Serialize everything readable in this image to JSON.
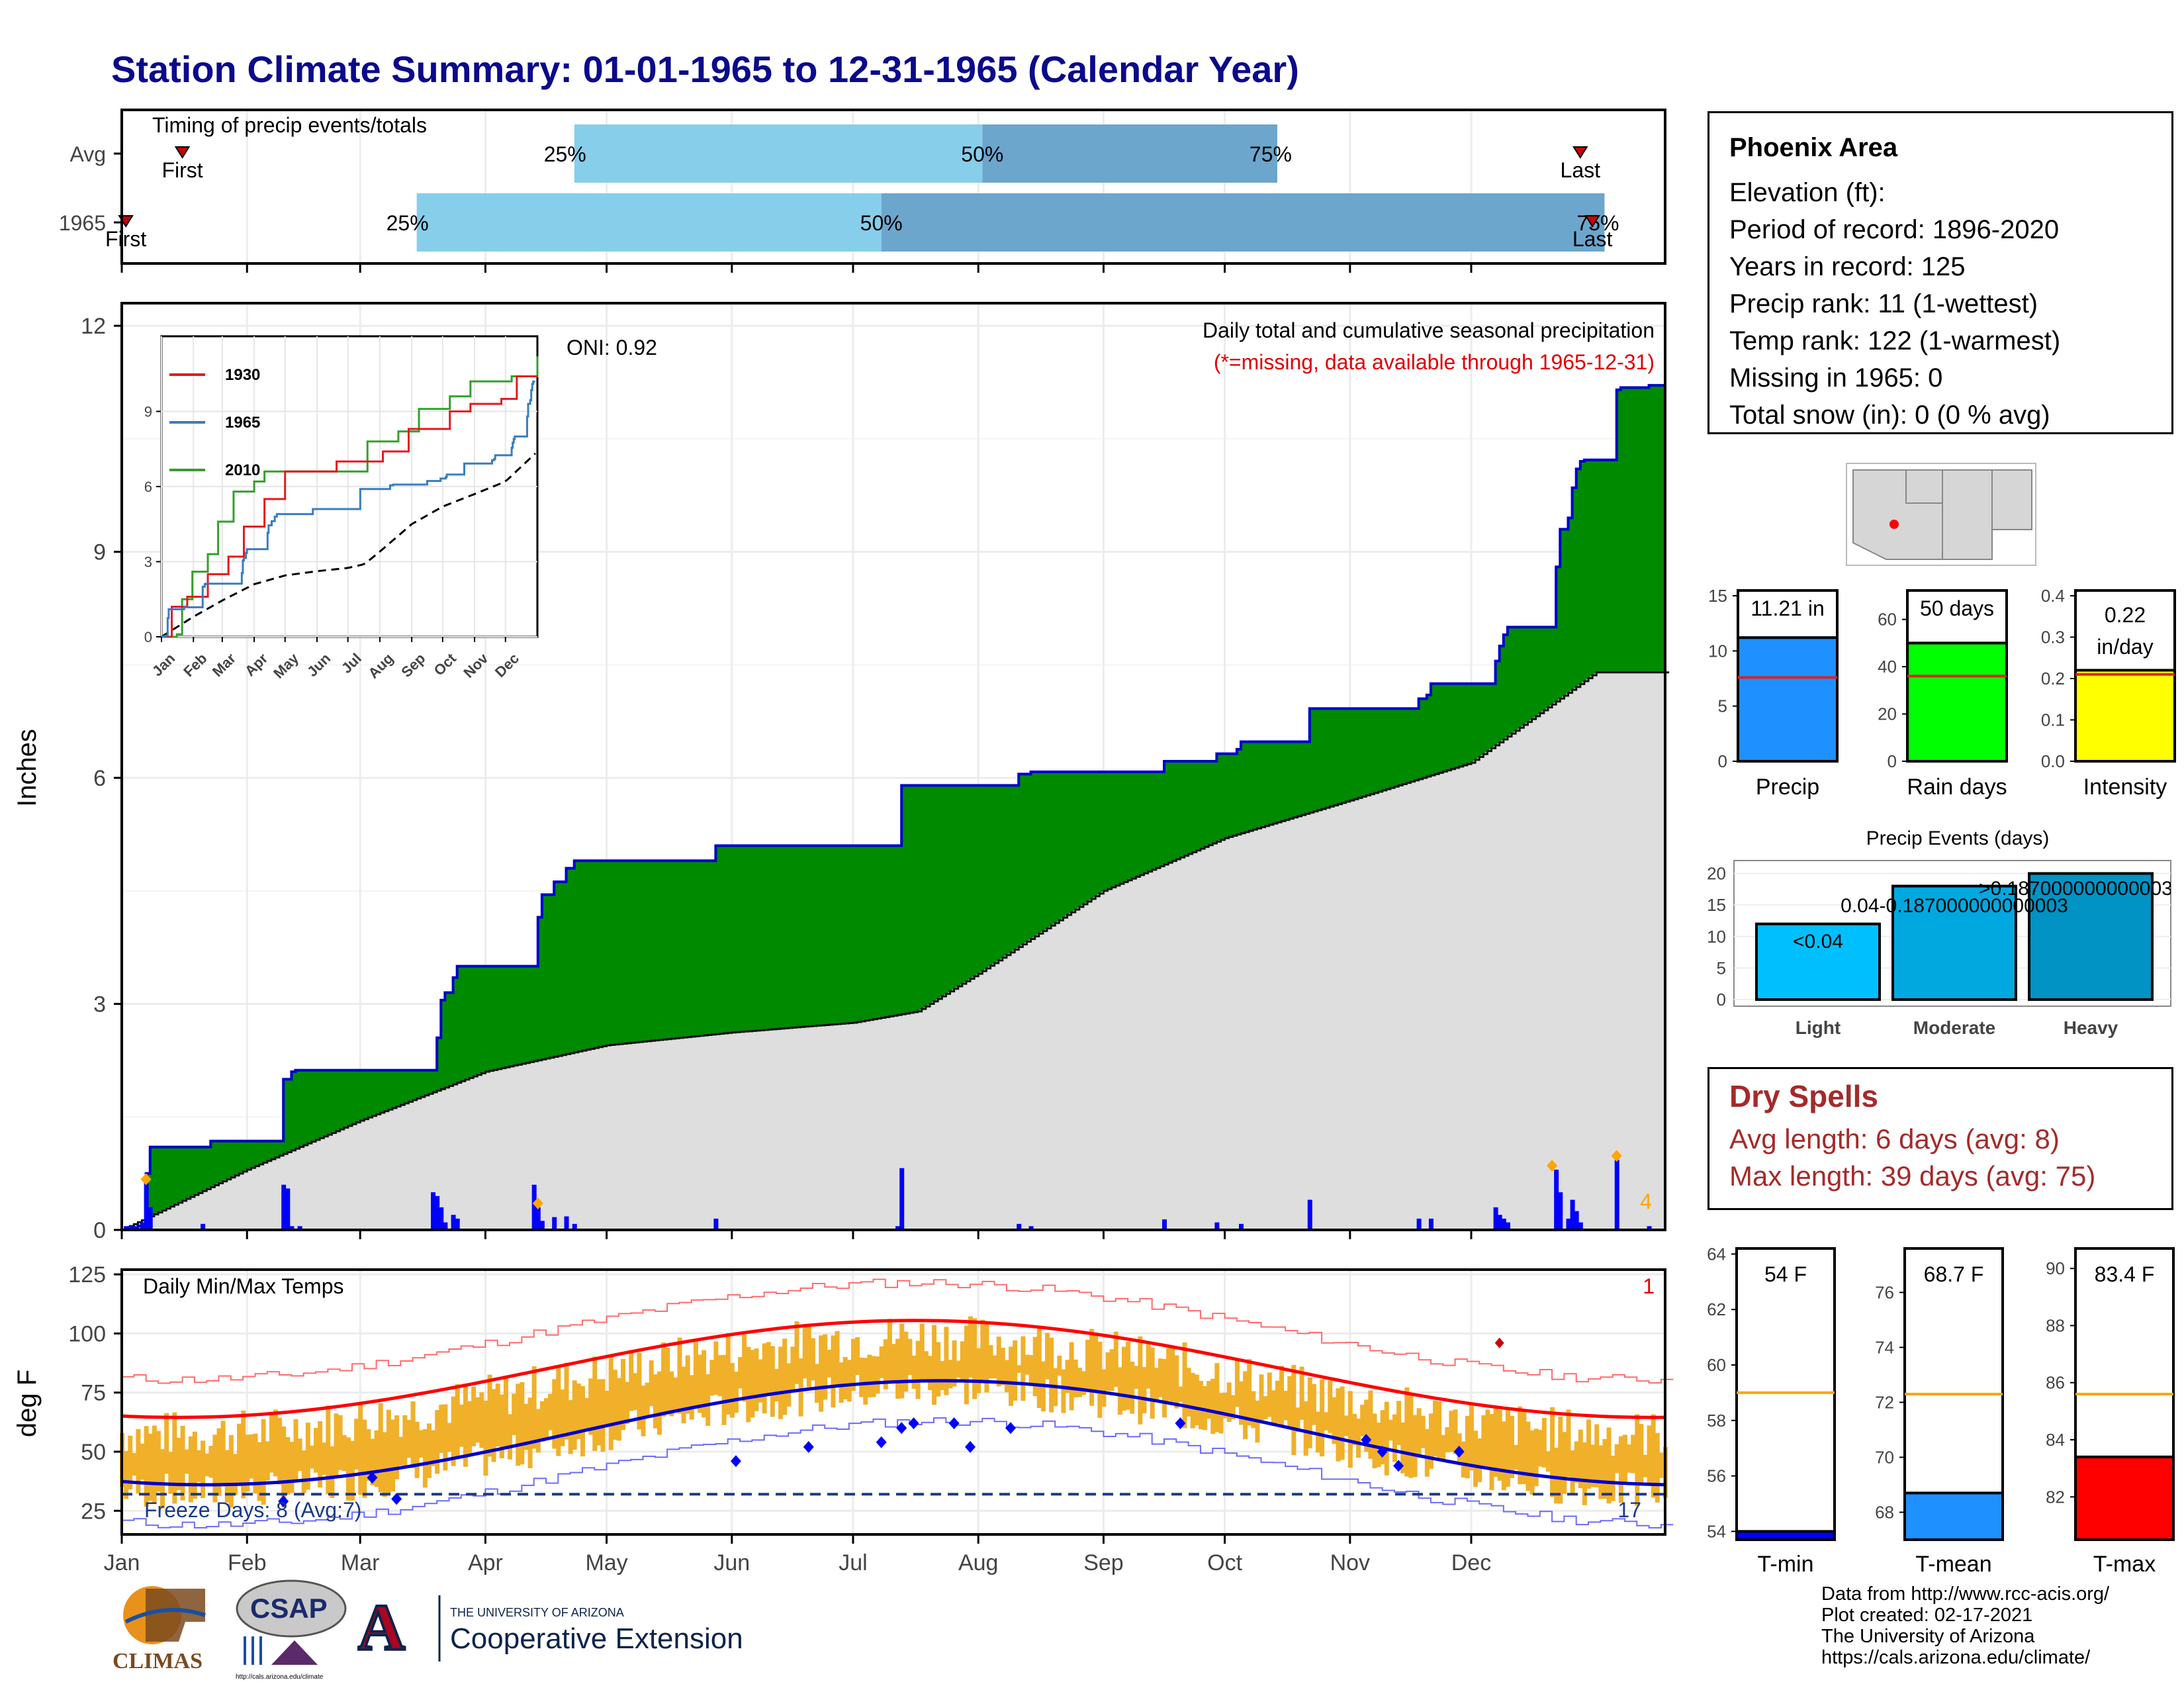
{
  "title": "Station Climate Summary: 01-01-1965 to 12-31-1965 (Calendar Year)",
  "months": [
    "Jan",
    "Feb",
    "Mar",
    "Apr",
    "May",
    "Jun",
    "Jul",
    "Aug",
    "Sep",
    "Oct",
    "Nov",
    "Dec"
  ],
  "timing": {
    "title": "Timing of precip events/totals",
    "rows": [
      {
        "label": "Avg",
        "first_label": "First",
        "last_label": "Last",
        "first_day": 15,
        "last_day": 361,
        "p25_day": 112,
        "p50_day": 213,
        "p75_day": 286,
        "p25_label": "25%",
        "p50_label": "50%",
        "p75_label": "75%"
      },
      {
        "label": "1965",
        "first_label": "First",
        "last_label": "Last",
        "first_day": 1,
        "last_day": 364,
        "p25_day": 73,
        "p50_day": 188,
        "p75_day": 367,
        "p25_label": "25%",
        "p50_label": "50%",
        "p75_label": "75%"
      }
    ]
  },
  "precip_panel": {
    "ylabel": "Inches",
    "yticks": [
      0,
      3,
      6,
      9,
      12
    ],
    "ylim": [
      0,
      12.3
    ],
    "subtitle": "Daily total and cumulative seasonal precipitation",
    "note": "(*=missing, data available through 1965-12-31)",
    "oni": "ONI: 0.92",
    "count_label": "4",
    "cum_1965": [
      [
        0,
        0
      ],
      [
        1,
        0.02
      ],
      [
        4,
        0.05
      ],
      [
        6,
        0.75
      ],
      [
        7,
        1.1
      ],
      [
        21,
        1.1
      ],
      [
        22,
        1.18
      ],
      [
        39,
        1.18
      ],
      [
        40,
        2.0
      ],
      [
        42,
        2.1
      ],
      [
        43,
        2.12
      ],
      [
        77,
        2.12
      ],
      [
        78,
        2.55
      ],
      [
        79,
        3.05
      ],
      [
        80,
        3.15
      ],
      [
        82,
        3.35
      ],
      [
        83,
        3.5
      ],
      [
        102,
        3.5
      ],
      [
        103,
        4.15
      ],
      [
        104,
        4.45
      ],
      [
        107,
        4.62
      ],
      [
        110,
        4.8
      ],
      [
        112,
        4.9
      ],
      [
        146,
        4.9
      ],
      [
        147,
        5.1
      ],
      [
        192,
        5.1
      ],
      [
        193,
        5.9
      ],
      [
        221,
        5.9
      ],
      [
        222,
        6.05
      ],
      [
        225,
        6.08
      ],
      [
        257,
        6.08
      ],
      [
        258,
        6.22
      ],
      [
        270,
        6.22
      ],
      [
        271,
        6.32
      ],
      [
        276,
        6.38
      ],
      [
        277,
        6.48
      ],
      [
        293,
        6.48
      ],
      [
        294,
        6.92
      ],
      [
        320,
        6.92
      ],
      [
        321,
        7.05
      ],
      [
        323,
        7.1
      ],
      [
        324,
        7.25
      ],
      [
        339,
        7.25
      ],
      [
        340,
        7.55
      ],
      [
        341,
        7.75
      ],
      [
        342,
        7.9
      ],
      [
        343,
        8.0
      ],
      [
        354,
        8.0
      ],
      [
        355,
        8.8
      ],
      [
        356,
        9.3
      ],
      [
        358,
        9.45
      ],
      [
        359,
        9.85
      ],
      [
        360,
        10.1
      ],
      [
        361,
        10.2
      ],
      [
        362,
        10.22
      ],
      [
        369,
        10.22
      ],
      [
        370,
        11.15
      ],
      [
        371,
        11.18
      ],
      [
        377,
        11.18
      ],
      [
        378,
        11.21
      ],
      [
        382,
        11.21
      ]
    ],
    "normal_cum": [
      [
        0,
        0
      ],
      [
        31,
        0.8
      ],
      [
        59,
        1.45
      ],
      [
        90,
        2.1
      ],
      [
        120,
        2.45
      ],
      [
        151,
        2.62
      ],
      [
        181,
        2.75
      ],
      [
        197,
        2.9
      ],
      [
        212,
        3.4
      ],
      [
        243,
        4.5
      ],
      [
        273,
        5.2
      ],
      [
        304,
        5.7
      ],
      [
        334,
        6.2
      ],
      [
        365,
        7.4
      ]
    ],
    "daily_bars": [
      [
        1,
        0.05
      ],
      [
        2,
        0.05
      ],
      [
        3,
        0.05
      ],
      [
        5,
        0.1
      ],
      [
        6,
        0.62
      ],
      [
        7,
        0.3
      ],
      [
        20,
        0.08
      ],
      [
        40,
        0.6
      ],
      [
        41,
        0.55
      ],
      [
        42,
        0.05
      ],
      [
        44,
        0.05
      ],
      [
        77,
        0.5
      ],
      [
        78,
        0.45
      ],
      [
        79,
        0.3
      ],
      [
        80,
        0.1
      ],
      [
        82,
        0.2
      ],
      [
        83,
        0.15
      ],
      [
        102,
        0.6
      ],
      [
        103,
        0.3
      ],
      [
        104,
        0.12
      ],
      [
        107,
        0.17
      ],
      [
        110,
        0.18
      ],
      [
        112,
        0.08
      ],
      [
        147,
        0.15
      ],
      [
        192,
        0.05
      ],
      [
        193,
        0.82
      ],
      [
        222,
        0.08
      ],
      [
        225,
        0.05
      ],
      [
        258,
        0.14
      ],
      [
        271,
        0.1
      ],
      [
        277,
        0.08
      ],
      [
        294,
        0.4
      ],
      [
        321,
        0.15
      ],
      [
        324,
        0.15
      ],
      [
        340,
        0.3
      ],
      [
        341,
        0.2
      ],
      [
        342,
        0.15
      ],
      [
        343,
        0.1
      ],
      [
        355,
        0.8
      ],
      [
        356,
        0.5
      ],
      [
        358,
        0.15
      ],
      [
        359,
        0.4
      ],
      [
        360,
        0.25
      ],
      [
        361,
        0.1
      ],
      [
        370,
        0.93
      ],
      [
        378,
        0.05
      ]
    ],
    "marker_days": [
      6,
      103,
      354,
      370
    ]
  },
  "inset": {
    "legend": [
      "1930",
      "1965",
      "2010"
    ],
    "yticks": [
      0,
      3,
      6,
      9
    ],
    "colors": {
      "1930": "#e31a1c",
      "1965": "#3a7dbf",
      "2010": "#33a02c"
    },
    "months": [
      "Jan",
      "Feb",
      "Mar",
      "Apr",
      "May",
      "Jun",
      "Jul",
      "Aug",
      "Sep",
      "Oct",
      "Nov",
      "Dec"
    ]
  },
  "stats": {
    "station": "Phoenix Area",
    "elevation": "Elevation (ft):",
    "period": "Period of record: 1896-2020",
    "years": "Years in record: 125",
    "precip_rank": "Precip rank: 11 (1-wettest)",
    "temp_rank": "Temp rank: 122 (1-warmest)",
    "missing": "Missing in 1965: 0",
    "snow": "Total snow (in): 0 (0 % avg)"
  },
  "mini_bars": [
    {
      "name": "Precip",
      "value": 11.21,
      "value_label": "11.21 in",
      "avg": 7.6,
      "ymax": 15,
      "ticks": [
        0,
        5,
        10,
        15
      ],
      "color": "#1e90ff"
    },
    {
      "name": "Rain days",
      "value": 50,
      "value_label": "50 days",
      "avg": 36,
      "ymax": 70,
      "ticks": [
        0,
        20,
        40,
        60
      ],
      "color": "#00ff00"
    },
    {
      "name": "Intensity",
      "value": 0.22,
      "value_label": "0.22 in/day",
      "avg": 0.21,
      "ymax": 0.4,
      "ticks": [
        "0.0",
        "0.1",
        "0.2",
        "0.3",
        "0.4"
      ],
      "color": "#ffff00"
    }
  ],
  "events": {
    "title": "Precip Events (days)",
    "categories": [
      "Light",
      "Moderate",
      "Heavy"
    ],
    "values": [
      12,
      18,
      20
    ],
    "labels": [
      "<0.04",
      "0.04-0.187000000000003",
      ">0.187000000000003"
    ],
    "yticks": [
      0,
      5,
      10,
      15,
      20
    ],
    "colors": [
      "#00bfff",
      "#00a8e0",
      "#0093c4"
    ]
  },
  "dry_spells": {
    "title": "Dry Spells",
    "avg": "Avg length: 6 days (avg: 8)",
    "max": "Max length: 39 days (avg: 75)"
  },
  "temp_panel": {
    "title": "Daily Min/Max Temps",
    "ylabel": "deg F",
    "yticks": [
      25,
      50,
      75,
      100,
      125
    ],
    "ylim": [
      15,
      127
    ],
    "freeze_label": "Freeze Days: 8 (Avg:7)",
    "freeze_line": 32,
    "count_hot": "1",
    "count_freeze": "17"
  },
  "temp_bars": [
    {
      "name": "T-min",
      "value": 54,
      "value_label": "54 F",
      "avg": 59,
      "min": 53.7,
      "max": 64.2,
      "ticks": [
        54,
        56,
        58,
        60,
        62,
        64
      ],
      "color": "#0000ff"
    },
    {
      "name": "T-mean",
      "value": 68.7,
      "value_label": "68.7 F",
      "avg": 72.3,
      "min": 67.0,
      "max": 77.6,
      "ticks": [
        68,
        70,
        72,
        74,
        76
      ],
      "color": "#1e90ff"
    },
    {
      "name": "T-max",
      "value": 83.4,
      "value_label": "83.4 F",
      "avg": 85.6,
      "min": 80.5,
      "max": 90.7,
      "ticks": [
        82,
        84,
        86,
        88,
        90
      ],
      "color": "#ff0000"
    }
  ],
  "footer": {
    "l1": "Data from http://www.rcc-acis.org/",
    "l2": "Plot created: 02-17-2021",
    "l3": "The University of Arizona",
    "l4": "https://cals.arizona.edu/climate/"
  },
  "logos": {
    "climas": "CLIMAS",
    "csap": "CSAP",
    "csap_url": "http://cals.arizona.edu/climate",
    "ua_small": "THE UNIVERSITY OF ARIZONA",
    "ua_big": "Cooperative Extension",
    "ua_mark": "A"
  },
  "colors": {
    "title": "#0a0a8c",
    "green": "#008a00",
    "blue_line": "#0000cc",
    "grey_fill": "#dedede",
    "timing_light": "#87ceeb",
    "timing_dark": "#6ca6cd",
    "temp_bar": "#f0b02a",
    "dry": "#a52a2a"
  }
}
